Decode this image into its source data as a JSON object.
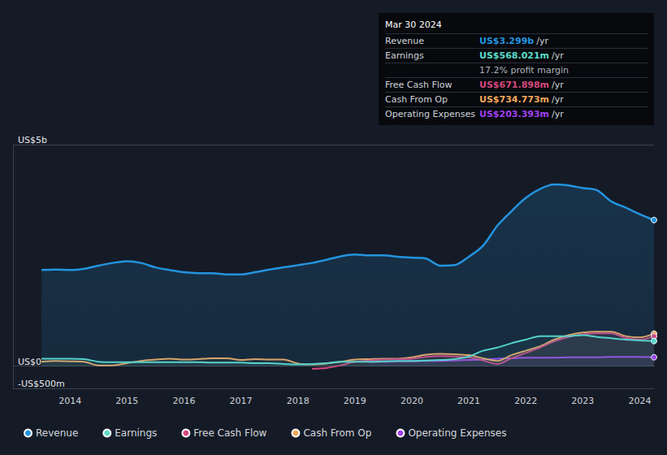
{
  "chart_data": {
    "type": "line",
    "x": [
      2013.5,
      2013.75,
      2014,
      2014.25,
      2014.5,
      2014.75,
      2015,
      2015.25,
      2015.5,
      2015.75,
      2016,
      2016.25,
      2016.5,
      2016.75,
      2017,
      2017.25,
      2017.5,
      2017.75,
      2018,
      2018.25,
      2018.5,
      2018.75,
      2019,
      2019.25,
      2019.5,
      2019.75,
      2020,
      2020.25,
      2020.5,
      2020.75,
      2021,
      2021.25,
      2021.5,
      2021.75,
      2022,
      2022.25,
      2022.5,
      2022.75,
      2023,
      2023.25,
      2023.5,
      2023.75,
      2024,
      2024.25
    ],
    "series": [
      {
        "name": "Revenue",
        "color": "#2394df",
        "values": [
          2.17,
          2.18,
          2.17,
          2.2,
          2.27,
          2.33,
          2.37,
          2.33,
          2.23,
          2.17,
          2.12,
          2.1,
          2.1,
          2.07,
          2.07,
          2.12,
          2.18,
          2.23,
          2.28,
          2.33,
          2.4,
          2.48,
          2.52,
          2.5,
          2.5,
          2.47,
          2.45,
          2.43,
          2.27,
          2.28,
          2.47,
          2.72,
          3.17,
          3.5,
          3.8,
          4.0,
          4.1,
          4.08,
          4.02,
          3.97,
          3.72,
          3.58,
          3.43,
          3.299
        ]
      },
      {
        "name": "Earnings",
        "color": "#5ddcc9",
        "values": [
          0.17,
          0.17,
          0.17,
          0.16,
          0.1,
          0.09,
          0.09,
          0.09,
          0.09,
          0.09,
          0.09,
          0.09,
          0.08,
          0.08,
          0.08,
          0.07,
          0.07,
          0.05,
          0.04,
          0.05,
          0.07,
          0.1,
          0.1,
          0.1,
          0.11,
          0.12,
          0.12,
          0.13,
          0.14,
          0.16,
          0.22,
          0.35,
          0.42,
          0.52,
          0.6,
          0.68,
          0.68,
          0.68,
          0.7,
          0.66,
          0.63,
          0.6,
          0.58,
          0.568
        ]
      },
      {
        "name": "Free Cash Flow",
        "color": "#d6487e",
        "values": [
          null,
          null,
          null,
          null,
          null,
          null,
          null,
          null,
          null,
          null,
          null,
          null,
          null,
          null,
          null,
          null,
          null,
          null,
          null,
          -0.06,
          -0.04,
          0.02,
          0.1,
          0.13,
          0.15,
          0.16,
          0.17,
          0.21,
          0.23,
          0.22,
          0.2,
          0.13,
          0.05,
          0.18,
          0.3,
          0.42,
          0.56,
          0.66,
          0.72,
          0.74,
          0.74,
          0.64,
          0.6,
          0.672
        ]
      },
      {
        "name": "Cash From Op",
        "color": "#f2a65a",
        "values": [
          0.1,
          0.12,
          0.11,
          0.1,
          0.02,
          0.02,
          0.07,
          0.12,
          0.15,
          0.17,
          0.15,
          0.16,
          0.18,
          0.18,
          0.14,
          0.16,
          0.15,
          0.15,
          0.06,
          0.04,
          0.06,
          0.1,
          0.15,
          0.16,
          0.17,
          0.17,
          0.2,
          0.26,
          0.28,
          0.27,
          0.25,
          0.18,
          0.12,
          0.25,
          0.35,
          0.45,
          0.6,
          0.7,
          0.76,
          0.78,
          0.78,
          0.68,
          0.65,
          0.735
        ]
      },
      {
        "name": "Operating Expenses",
        "color": "#a040f0",
        "values": [
          null,
          null,
          null,
          null,
          null,
          null,
          null,
          null,
          null,
          null,
          null,
          null,
          null,
          null,
          null,
          null,
          null,
          null,
          null,
          null,
          null,
          null,
          null,
          0.1,
          0.1,
          0.11,
          0.11,
          0.12,
          0.12,
          0.13,
          0.14,
          0.15,
          0.17,
          0.18,
          0.19,
          0.19,
          0.19,
          0.2,
          0.2,
          0.2,
          0.21,
          0.21,
          0.21,
          0.203
        ]
      }
    ],
    "xlim": [
      2013,
      2024.25
    ],
    "xticks": [
      2014,
      2015,
      2016,
      2017,
      2018,
      2019,
      2020,
      2021,
      2022,
      2023,
      2024
    ],
    "ylim": [
      -0.5,
      5
    ],
    "yticks": [
      {
        "value": -0.5,
        "label": "-US$500m"
      },
      {
        "value": 0,
        "label": "US$0"
      },
      {
        "value": 5,
        "label": "US$5b"
      }
    ],
    "grid": true,
    "legend": "bottom left",
    "info_box": {
      "title": "Mar 30 2024",
      "rows": [
        {
          "label": "Revenue",
          "value": "US$3.299b",
          "suffix": "/yr"
        },
        {
          "label": "Earnings",
          "value": "US$568.021m",
          "suffix": "/yr"
        },
        {
          "value": "17.2% profit margin"
        },
        {
          "label": "Free Cash Flow",
          "value": "US$671.898m",
          "suffix": "/yr"
        },
        {
          "label": "Cash From Op",
          "value": "US$734.773m",
          "suffix": "/yr"
        },
        {
          "label": "Operating Expenses",
          "value": "US$203.393m",
          "suffix": "/yr"
        }
      ]
    }
  }
}
